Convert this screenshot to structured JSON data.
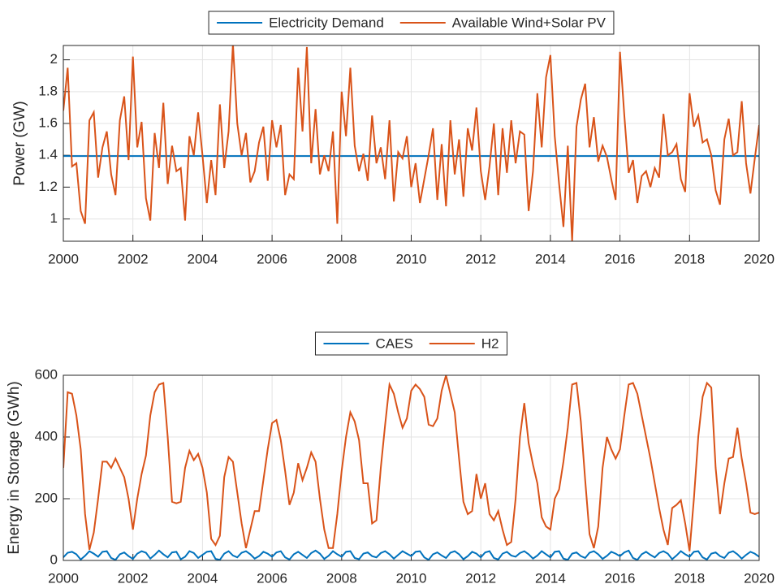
{
  "chart_data": [
    {
      "type": "line",
      "ylabel": "Power (GW)",
      "legend": "north-outside",
      "grid": true,
      "xlim": [
        2000,
        2020
      ],
      "xticks": [
        2000,
        2002,
        2004,
        2006,
        2008,
        2010,
        2012,
        2014,
        2016,
        2018,
        2020
      ],
      "ylim": [
        0.86,
        2.09
      ],
      "yticks": [
        1,
        1.2,
        1.4,
        1.6,
        1.8,
        2
      ],
      "x": [
        2000,
        2000.125,
        2000.25,
        2000.375,
        2000.5,
        2000.625,
        2000.75,
        2000.875,
        2001,
        2001.125,
        2001.25,
        2001.375,
        2001.5,
        2001.625,
        2001.75,
        2001.875,
        2002,
        2002.125,
        2002.25,
        2002.375,
        2002.5,
        2002.625,
        2002.75,
        2002.875,
        2003,
        2003.125,
        2003.25,
        2003.375,
        2003.5,
        2003.625,
        2003.75,
        2003.875,
        2004,
        2004.125,
        2004.25,
        2004.375,
        2004.5,
        2004.625,
        2004.75,
        2004.875,
        2005,
        2005.125,
        2005.25,
        2005.375,
        2005.5,
        2005.625,
        2005.75,
        2005.875,
        2006,
        2006.125,
        2006.25,
        2006.375,
        2006.5,
        2006.625,
        2006.75,
        2006.875,
        2007,
        2007.125,
        2007.25,
        2007.375,
        2007.5,
        2007.625,
        2007.75,
        2007.875,
        2008,
        2008.125,
        2008.25,
        2008.375,
        2008.5,
        2008.625,
        2008.75,
        2008.875,
        2009,
        2009.125,
        2009.25,
        2009.375,
        2009.5,
        2009.625,
        2009.75,
        2009.875,
        2010,
        2010.125,
        2010.25,
        2010.375,
        2010.5,
        2010.625,
        2010.75,
        2010.875,
        2011,
        2011.125,
        2011.25,
        2011.375,
        2011.5,
        2011.625,
        2011.75,
        2011.875,
        2012,
        2012.125,
        2012.25,
        2012.375,
        2012.5,
        2012.625,
        2012.75,
        2012.875,
        2013,
        2013.125,
        2013.25,
        2013.375,
        2013.5,
        2013.625,
        2013.75,
        2013.875,
        2014,
        2014.125,
        2014.25,
        2014.375,
        2014.5,
        2014.625,
        2014.75,
        2014.875,
        2015,
        2015.125,
        2015.25,
        2015.375,
        2015.5,
        2015.625,
        2015.75,
        2015.875,
        2016,
        2016.125,
        2016.25,
        2016.375,
        2016.5,
        2016.625,
        2016.75,
        2016.875,
        2017,
        2017.125,
        2017.25,
        2017.375,
        2017.5,
        2017.625,
        2017.75,
        2017.875,
        2018,
        2018.125,
        2018.25,
        2018.375,
        2018.5,
        2018.625,
        2018.75,
        2018.875,
        2019,
        2019.125,
        2019.25,
        2019.375,
        2019.5,
        2019.625,
        2019.75,
        2019.875,
        2020
      ],
      "series": [
        {
          "name": "Electricity Demand",
          "color": "#0072bd",
          "values": [
            1.395,
            1.395,
            1.395,
            1.395,
            1.395,
            1.395,
            1.395,
            1.395,
            1.395,
            1.395,
            1.395,
            1.395,
            1.395,
            1.395,
            1.395,
            1.395,
            1.395,
            1.395,
            1.395,
            1.395,
            1.395,
            1.395,
            1.395,
            1.395,
            1.395,
            1.395,
            1.395,
            1.395,
            1.395,
            1.395,
            1.395,
            1.395,
            1.395,
            1.395,
            1.395,
            1.395,
            1.395,
            1.395,
            1.395,
            1.395,
            1.395,
            1.395,
            1.395,
            1.395,
            1.395,
            1.395,
            1.395,
            1.395,
            1.395,
            1.395,
            1.395,
            1.395,
            1.395,
            1.395,
            1.395,
            1.395,
            1.395,
            1.395,
            1.395,
            1.395,
            1.395,
            1.395,
            1.395,
            1.395,
            1.395,
            1.395,
            1.395,
            1.395,
            1.395,
            1.395,
            1.395,
            1.395,
            1.395,
            1.395,
            1.395,
            1.395,
            1.395,
            1.395,
            1.395,
            1.395,
            1.395,
            1.395,
            1.395,
            1.395,
            1.395,
            1.395,
            1.395,
            1.395,
            1.395,
            1.395,
            1.395,
            1.395,
            1.395,
            1.395,
            1.395,
            1.395,
            1.395,
            1.395,
            1.395,
            1.395,
            1.395,
            1.395,
            1.395,
            1.395,
            1.395,
            1.395,
            1.395,
            1.395,
            1.395,
            1.395,
            1.395,
            1.395,
            1.395,
            1.395,
            1.395,
            1.395,
            1.395,
            1.395,
            1.395,
            1.395,
            1.395,
            1.395,
            1.395,
            1.395,
            1.395,
            1.395,
            1.395,
            1.395,
            1.395,
            1.395,
            1.395,
            1.395,
            1.395,
            1.395,
            1.395,
            1.395,
            1.395,
            1.395,
            1.395,
            1.395,
            1.395,
            1.395,
            1.395,
            1.395,
            1.395,
            1.395,
            1.395,
            1.395,
            1.395,
            1.395,
            1.395,
            1.395,
            1.395,
            1.395,
            1.395,
            1.395,
            1.395,
            1.395,
            1.395,
            1.395,
            1.395
          ]
        },
        {
          "name": "Available Wind+Solar PV",
          "color": "#d95319",
          "values": [
            1.68,
            1.95,
            1.33,
            1.35,
            1.05,
            0.97,
            1.62,
            1.67,
            1.26,
            1.45,
            1.55,
            1.28,
            1.15,
            1.62,
            1.77,
            1.37,
            2.02,
            1.45,
            1.61,
            1.13,
            0.99,
            1.54,
            1.32,
            1.73,
            1.22,
            1.46,
            1.3,
            1.32,
            0.99,
            1.52,
            1.4,
            1.67,
            1.4,
            1.1,
            1.37,
            1.15,
            1.72,
            1.32,
            1.55,
            2.1,
            1.6,
            1.4,
            1.54,
            1.23,
            1.3,
            1.48,
            1.58,
            1.24,
            1.62,
            1.45,
            1.59,
            1.15,
            1.28,
            1.25,
            1.95,
            1.55,
            2.08,
            1.35,
            1.69,
            1.28,
            1.4,
            1.3,
            1.55,
            0.97,
            1.8,
            1.52,
            1.95,
            1.46,
            1.3,
            1.41,
            1.24,
            1.65,
            1.35,
            1.45,
            1.25,
            1.62,
            1.11,
            1.42,
            1.38,
            1.52,
            1.2,
            1.35,
            1.1,
            1.25,
            1.4,
            1.57,
            1.12,
            1.47,
            1.08,
            1.62,
            1.28,
            1.5,
            1.14,
            1.57,
            1.43,
            1.7,
            1.3,
            1.12,
            1.33,
            1.6,
            1.15,
            1.57,
            1.29,
            1.62,
            1.35,
            1.55,
            1.53,
            1.05,
            1.3,
            1.79,
            1.45,
            1.89,
            2.03,
            1.52,
            1.22,
            0.95,
            1.46,
            0.86,
            1.58,
            1.75,
            1.85,
            1.45,
            1.64,
            1.36,
            1.46,
            1.39,
            1.25,
            1.12,
            2.05,
            1.65,
            1.29,
            1.37,
            1.1,
            1.27,
            1.3,
            1.2,
            1.32,
            1.26,
            1.66,
            1.4,
            1.42,
            1.47,
            1.25,
            1.17,
            1.79,
            1.58,
            1.65,
            1.48,
            1.5,
            1.4,
            1.18,
            1.09,
            1.5,
            1.63,
            1.4,
            1.42,
            1.74,
            1.35,
            1.16,
            1.38,
            1.59
          ]
        }
      ]
    },
    {
      "type": "line",
      "ylabel": "Energy in Storage (GWh)",
      "legend": "north-outside",
      "grid": true,
      "xlim": [
        2000,
        2020
      ],
      "xticks": [
        2000,
        2002,
        2004,
        2006,
        2008,
        2010,
        2012,
        2014,
        2016,
        2018,
        2020
      ],
      "ylim": [
        0,
        600
      ],
      "yticks": [
        0,
        200,
        400,
        600
      ],
      "x": [
        2000,
        2000.125,
        2000.25,
        2000.375,
        2000.5,
        2000.625,
        2000.75,
        2000.875,
        2001,
        2001.125,
        2001.25,
        2001.375,
        2001.5,
        2001.625,
        2001.75,
        2001.875,
        2002,
        2002.125,
        2002.25,
        2002.375,
        2002.5,
        2002.625,
        2002.75,
        2002.875,
        2003,
        2003.125,
        2003.25,
        2003.375,
        2003.5,
        2003.625,
        2003.75,
        2003.875,
        2004,
        2004.125,
        2004.25,
        2004.375,
        2004.5,
        2004.625,
        2004.75,
        2004.875,
        2005,
        2005.125,
        2005.25,
        2005.375,
        2005.5,
        2005.625,
        2005.75,
        2005.875,
        2006,
        2006.125,
        2006.25,
        2006.375,
        2006.5,
        2006.625,
        2006.75,
        2006.875,
        2007,
        2007.125,
        2007.25,
        2007.375,
        2007.5,
        2007.625,
        2007.75,
        2007.875,
        2008,
        2008.125,
        2008.25,
        2008.375,
        2008.5,
        2008.625,
        2008.75,
        2008.875,
        2009,
        2009.125,
        2009.25,
        2009.375,
        2009.5,
        2009.625,
        2009.75,
        2009.875,
        2010,
        2010.125,
        2010.25,
        2010.375,
        2010.5,
        2010.625,
        2010.75,
        2010.875,
        2011,
        2011.125,
        2011.25,
        2011.375,
        2011.5,
        2011.625,
        2011.75,
        2011.875,
        2012,
        2012.125,
        2012.25,
        2012.375,
        2012.5,
        2012.625,
        2012.75,
        2012.875,
        2013,
        2013.125,
        2013.25,
        2013.375,
        2013.5,
        2013.625,
        2013.75,
        2013.875,
        2014,
        2014.125,
        2014.25,
        2014.375,
        2014.5,
        2014.625,
        2014.75,
        2014.875,
        2015,
        2015.125,
        2015.25,
        2015.375,
        2015.5,
        2015.625,
        2015.75,
        2015.875,
        2016,
        2016.125,
        2016.25,
        2016.375,
        2016.5,
        2016.625,
        2016.75,
        2016.875,
        2017,
        2017.125,
        2017.25,
        2017.375,
        2017.5,
        2017.625,
        2017.75,
        2017.875,
        2018,
        2018.125,
        2018.25,
        2018.375,
        2018.5,
        2018.625,
        2018.75,
        2018.875,
        2019,
        2019.125,
        2019.25,
        2019.375,
        2019.5,
        2019.625,
        2019.75,
        2019.875,
        2020
      ],
      "series": [
        {
          "name": "CAES",
          "color": "#0072bd",
          "values": [
            10,
            25,
            28,
            20,
            3,
            15,
            30,
            22,
            12,
            28,
            30,
            8,
            2,
            20,
            26,
            14,
            5,
            22,
            30,
            25,
            6,
            18,
            32,
            20,
            10,
            26,
            28,
            4,
            12,
            30,
            24,
            8,
            18,
            28,
            30,
            5,
            2,
            22,
            30,
            16,
            10,
            25,
            30,
            20,
            6,
            14,
            28,
            22,
            12,
            26,
            30,
            10,
            3,
            20,
            28,
            18,
            8,
            24,
            32,
            22,
            5,
            15,
            30,
            20,
            12,
            28,
            30,
            8,
            4,
            22,
            26,
            14,
            10,
            24,
            30,
            20,
            6,
            18,
            30,
            22,
            14,
            28,
            30,
            10,
            2,
            20,
            26,
            16,
            8,
            25,
            30,
            20,
            4,
            14,
            28,
            22,
            10,
            26,
            30,
            8,
            3,
            22,
            28,
            16,
            12,
            24,
            30,
            20,
            6,
            16,
            30,
            20,
            10,
            28,
            30,
            6,
            2,
            22,
            26,
            14,
            8,
            25,
            30,
            20,
            5,
            15,
            28,
            22,
            14,
            26,
            32,
            8,
            2,
            20,
            28,
            18,
            10,
            24,
            30,
            22,
            4,
            16,
            30,
            20,
            12,
            28,
            30,
            10,
            3,
            22,
            26,
            14,
            8,
            25,
            30,
            20,
            6,
            18,
            28,
            22,
            12
          ]
        },
        {
          "name": "H2",
          "color": "#d95319",
          "values": [
            300,
            545,
            540,
            470,
            360,
            150,
            35,
            90,
            200,
            320,
            320,
            300,
            330,
            300,
            270,
            200,
            100,
            200,
            280,
            340,
            470,
            545,
            570,
            575,
            400,
            190,
            185,
            190,
            300,
            355,
            325,
            345,
            300,
            220,
            70,
            50,
            80,
            270,
            335,
            320,
            220,
            120,
            40,
            100,
            160,
            160,
            260,
            360,
            445,
            455,
            390,
            290,
            180,
            220,
            315,
            260,
            300,
            350,
            320,
            200,
            100,
            40,
            40,
            150,
            290,
            400,
            480,
            450,
            390,
            250,
            250,
            120,
            130,
            300,
            440,
            570,
            540,
            480,
            430,
            460,
            550,
            570,
            555,
            530,
            440,
            435,
            460,
            550,
            600,
            540,
            480,
            330,
            190,
            150,
            160,
            280,
            200,
            250,
            150,
            130,
            160,
            100,
            50,
            60,
            200,
            400,
            510,
            380,
            310,
            250,
            140,
            110,
            100,
            200,
            230,
            320,
            430,
            570,
            575,
            450,
            260,
            85,
            40,
            110,
            300,
            400,
            360,
            330,
            360,
            470,
            570,
            575,
            540,
            470,
            400,
            330,
            250,
            170,
            100,
            50,
            170,
            180,
            195,
            120,
            30,
            200,
            400,
            530,
            575,
            560,
            300,
            150,
            250,
            330,
            335,
            430,
            330,
            250,
            155,
            150,
            155
          ]
        }
      ]
    }
  ]
}
